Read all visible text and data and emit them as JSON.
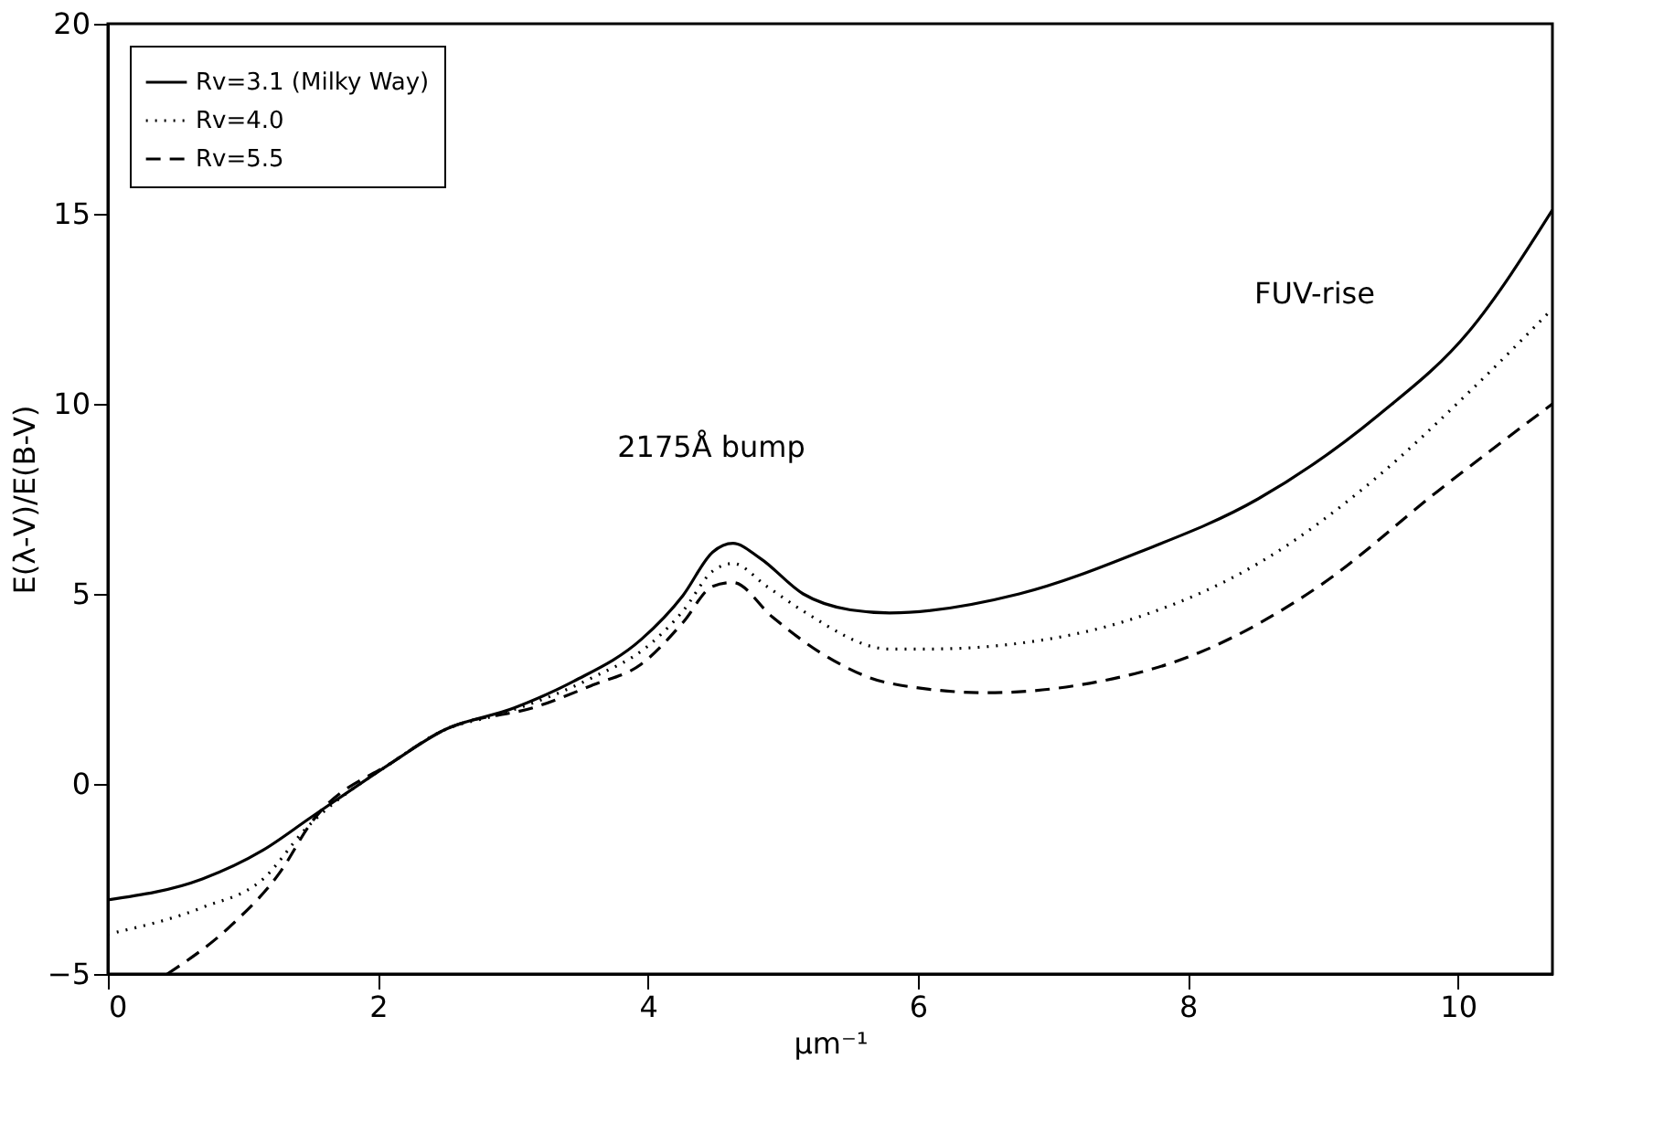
{
  "chart_data": {
    "type": "line",
    "xlabel": "μm⁻¹",
    "ylabel": "E(λ-V)/E(B-V)",
    "xlim": [
      0,
      10.7
    ],
    "ylim": [
      -5,
      20
    ],
    "xticks": [
      0,
      2,
      4,
      6,
      8,
      10
    ],
    "yticks": [
      -5,
      0,
      5,
      10,
      15,
      20
    ],
    "grid": false,
    "legend": "top left",
    "marker": "none",
    "annotations": [
      "2175Å bump",
      "FUV-rise"
    ],
    "series": [
      {
        "name": "Rv=3.1 (Milky Way)",
        "color": "#000000",
        "line_style": "solid",
        "x": [
          0,
          0.7,
          1.15,
          1.5,
          2.12,
          2.48,
          3.01,
          3.45,
          3.95,
          4.26,
          4.48,
          4.63,
          4.83,
          5.15,
          5.5,
          5.79,
          6.75,
          7.64,
          8.52,
          9.41,
          10.08,
          10.7
        ],
        "values": [
          -3.05,
          -2.5,
          -1.74,
          -0.89,
          0.6,
          1.4,
          2.0,
          2.7,
          3.8,
          4.96,
          6.1,
          6.33,
          5.94,
          5.0,
          4.58,
          4.5,
          5.0,
          6.1,
          7.5,
          9.7,
          11.9,
          15.1
        ]
      },
      {
        "name": "Rv=4.0",
        "color": "#000000",
        "line_style": "dotted",
        "x": [
          0,
          0.7,
          1.15,
          1.46,
          2.12,
          2.48,
          2.92,
          3.59,
          3.99,
          4.26,
          4.48,
          4.63,
          4.88,
          5.15,
          5.79,
          6.08,
          6.75,
          7.64,
          8.52,
          9.41,
          10.08,
          10.7
        ],
        "values": [
          -3.95,
          -3.25,
          -2.5,
          -1.2,
          0.6,
          1.4,
          1.85,
          2.8,
          3.6,
          4.55,
          5.6,
          5.8,
          5.2,
          4.55,
          3.55,
          3.55,
          3.7,
          4.4,
          5.8,
          8.1,
          10.3,
          12.5
        ]
      },
      {
        "name": "Rv=5.5",
        "color": "#000000",
        "line_style": "dashed",
        "x": [
          0.44,
          0.92,
          1.28,
          1.5,
          2.12,
          2.48,
          3.19,
          3.59,
          3.95,
          4.26,
          4.48,
          4.63,
          4.92,
          5.28,
          5.79,
          6.52,
          7.19,
          8.08,
          8.97,
          9.85,
          10.7
        ],
        "values": [
          -5.0,
          -3.7,
          -2.3,
          -1.05,
          0.6,
          1.4,
          2.05,
          2.6,
          3.15,
          4.25,
          5.2,
          5.3,
          4.4,
          3.45,
          2.65,
          2.4,
          2.6,
          3.45,
          5.2,
          7.7,
          10.0
        ]
      }
    ]
  }
}
